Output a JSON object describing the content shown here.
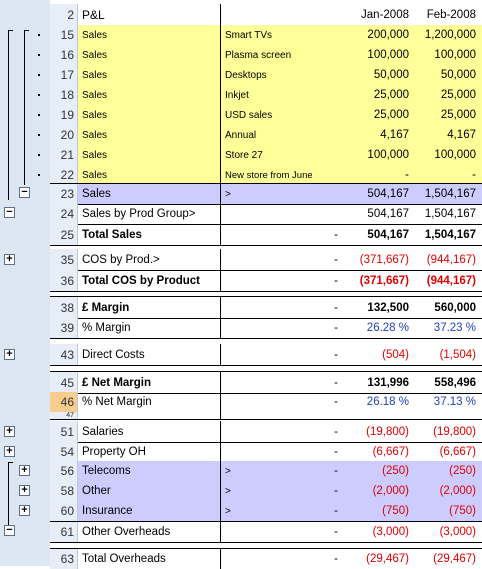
{
  "header": {
    "rownum": "2",
    "label": "P&L",
    "col_d": "Jan-2008",
    "col_e": "Feb-2008"
  },
  "rows": [
    {
      "num": "15",
      "a": "Sales",
      "b": "Smart TVs",
      "d": "200,000",
      "e": "1,200,000"
    },
    {
      "num": "16",
      "a": "Sales",
      "b": "Plasma screen",
      "d": "100,000",
      "e": "100,000"
    },
    {
      "num": "17",
      "a": "Sales",
      "b": "Desktops",
      "d": "50,000",
      "e": "50,000"
    },
    {
      "num": "18",
      "a": "Sales",
      "b": "Inkjet",
      "d": "25,000",
      "e": "25,000"
    },
    {
      "num": "19",
      "a": "Sales",
      "b": "USD sales",
      "d": "25,000",
      "e": "25,000"
    },
    {
      "num": "20",
      "a": "Sales",
      "b": "Annual",
      "d": "4,167",
      "e": "4,167"
    },
    {
      "num": "21",
      "a": "Sales",
      "b": "Store 27",
      "d": "100,000",
      "e": "100,000"
    },
    {
      "num": "22",
      "a": "Sales",
      "b": "New store from June",
      "d": "-",
      "e": "-"
    },
    {
      "num": "23",
      "a": "Sales",
      "b": ">",
      "d": "504,167",
      "e": "1,504,167"
    },
    {
      "num": "24",
      "a": "Sales by Prod Group>",
      "d": "504,167",
      "e": "1,504,167"
    },
    {
      "num": "25",
      "a": "Total Sales",
      "c": "-",
      "d": "504,167",
      "e": "1,504,167"
    },
    {
      "num": "35",
      "a": "COS by Prod.>",
      "c": "-",
      "d": "(371,667)",
      "e": "(944,167)"
    },
    {
      "num": "36",
      "a": "Total COS by Product",
      "c": "-",
      "d": "(371,667)",
      "e": "(944,167)"
    },
    {
      "num": "38",
      "a": "£ Margin",
      "c": "-",
      "d": "132,500",
      "e": "560,000"
    },
    {
      "num": "39",
      "a": "% Margin",
      "c": "-",
      "d": "26.28 %",
      "e": "37.23 %"
    },
    {
      "num": "43",
      "a": "Direct Costs",
      "c": "-",
      "d": "(504)",
      "e": "(1,504)"
    },
    {
      "num": "45",
      "a": "£ Net Margin",
      "c": "-",
      "d": "131,996",
      "e": "558,496"
    },
    {
      "num": "46",
      "a": "% Net Margin",
      "c": "-",
      "d": "26.18 %",
      "e": "37.13 %"
    },
    {
      "num": "47"
    },
    {
      "num": "51",
      "a": "Salaries",
      "c": "-",
      "d": "(19,800)",
      "e": "(19,800)"
    },
    {
      "num": "54",
      "a": "Property OH",
      "c": "-",
      "d": "(6,667)",
      "e": "(6,667)"
    },
    {
      "num": "56",
      "a": "Telecoms",
      "b": ">",
      "c": "-",
      "d": "(250)",
      "e": "(250)"
    },
    {
      "num": "58",
      "a": "Other",
      "b": ">",
      "c": "-",
      "d": "(2,000)",
      "e": "(2,000)"
    },
    {
      "num": "60",
      "a": "Insurance",
      "b": ">",
      "c": "-",
      "d": "(750)",
      "e": "(750)"
    },
    {
      "num": "61",
      "a": "Other Overheads",
      "c": "-",
      "d": "(3,000)",
      "e": "(3,000)"
    },
    {
      "num": "63",
      "a": "Total Overheads",
      "c": "-",
      "d": "(29,467)",
      "e": "(29,467)"
    }
  ],
  "outline": {
    "collapse_symbol": "−",
    "expand_symbol": "+"
  },
  "colors": {
    "yellow": "#ffff99",
    "lavender": "#ccccff",
    "negative": "#e00000",
    "percent": "#1f3fbf",
    "highlight_rownum": "#f8cb8f"
  }
}
